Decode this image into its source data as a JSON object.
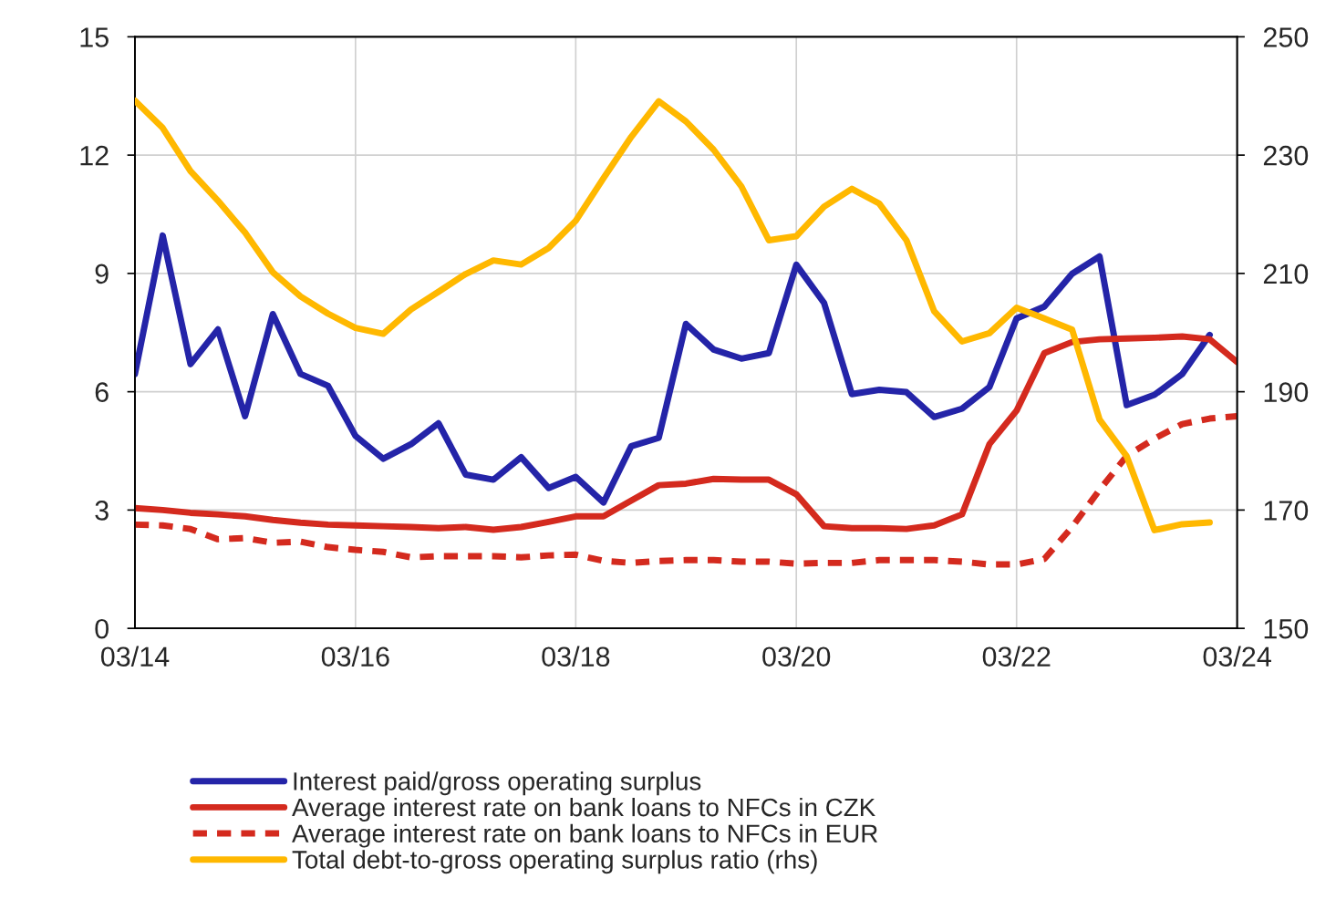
{
  "chart_data": {
    "type": "line",
    "x": [
      "2014-03",
      "2014-06",
      "2014-09",
      "2014-12",
      "2015-03",
      "2015-06",
      "2015-09",
      "2015-12",
      "2016-03",
      "2016-06",
      "2016-09",
      "2016-12",
      "2017-03",
      "2017-06",
      "2017-09",
      "2017-12",
      "2018-03",
      "2018-06",
      "2018-09",
      "2018-12",
      "2019-03",
      "2019-06",
      "2019-09",
      "2019-12",
      "2020-03",
      "2020-06",
      "2020-09",
      "2020-12",
      "2021-03",
      "2021-06",
      "2021-09",
      "2021-12",
      "2022-03",
      "2022-06",
      "2022-09",
      "2022-12",
      "2023-03",
      "2023-06",
      "2023-09",
      "2023-12",
      "2024-03"
    ],
    "series": [
      {
        "name": "Interest paid/gross operating surplus",
        "color": "#2424a8",
        "line_style": "solid",
        "values": [
          6.45,
          9.96,
          6.7,
          7.58,
          5.38,
          7.97,
          6.45,
          6.15,
          4.88,
          4.3,
          4.67,
          5.2,
          3.9,
          3.77,
          4.34,
          3.56,
          3.84,
          3.19,
          4.62,
          4.83,
          7.72,
          7.07,
          6.84,
          6.98,
          9.22,
          8.25,
          5.94,
          6.05,
          5.99,
          5.36,
          5.57,
          6.12,
          7.86,
          8.16,
          8.99,
          9.43,
          5.66,
          5.92,
          6.45,
          7.44,
          null
        ]
      },
      {
        "name": "Average interest rate on bank loans to NFCs in CZK",
        "color": "#d42a1e",
        "line_style": "solid",
        "values": [
          3.05,
          3.0,
          2.93,
          2.89,
          2.84,
          2.75,
          2.68,
          2.63,
          2.61,
          2.59,
          2.57,
          2.54,
          2.57,
          2.5,
          2.57,
          2.7,
          2.84,
          2.84,
          3.24,
          3.63,
          3.67,
          3.79,
          3.77,
          3.77,
          3.4,
          2.59,
          2.54,
          2.54,
          2.52,
          2.61,
          2.89,
          4.67,
          5.52,
          6.98,
          7.26,
          7.33,
          7.35,
          7.37,
          7.4,
          7.33,
          6.75
        ]
      },
      {
        "name": "Average interest rate on bank loans to NFCs in EUR",
        "color": "#d42a1e",
        "line_style": "dashed",
        "values": [
          2.63,
          2.61,
          2.52,
          2.26,
          2.29,
          2.17,
          2.2,
          2.06,
          1.99,
          1.94,
          1.8,
          1.83,
          1.83,
          1.83,
          1.8,
          1.85,
          1.87,
          1.71,
          1.66,
          1.71,
          1.73,
          1.73,
          1.69,
          1.69,
          1.64,
          1.66,
          1.66,
          1.73,
          1.73,
          1.73,
          1.69,
          1.62,
          1.62,
          1.76,
          2.57,
          3.51,
          4.37,
          4.81,
          5.18,
          5.32,
          5.38
        ]
      },
      {
        "name": "Total debt-to-gross operating surplus ratio (rhs)",
        "color": "#ffb800",
        "line_style": "solid",
        "axis": "y2",
        "values": [
          239.2,
          234.6,
          227.3,
          222.3,
          216.9,
          210.2,
          206.1,
          203.2,
          200.8,
          199.8,
          203.9,
          206.9,
          209.9,
          212.2,
          211.5,
          214.3,
          218.9,
          226.1,
          233.1,
          239.1,
          235.7,
          230.9,
          224.7,
          215.6,
          216.3,
          221.3,
          224.3,
          221.8,
          215.6,
          203.6,
          198.5,
          199.9,
          204.2,
          202.4,
          200.5,
          185.3,
          179.1,
          166.6,
          167.6,
          167.9,
          null
        ]
      }
    ],
    "xlim": [
      "2014-03",
      "2024-03"
    ],
    "xticks": [
      {
        "value": "2014-03",
        "label": "03/14"
      },
      {
        "value": "2016-03",
        "label": "03/16"
      },
      {
        "value": "2018-03",
        "label": "03/18"
      },
      {
        "value": "2020-03",
        "label": "03/20"
      },
      {
        "value": "2022-03",
        "label": "03/22"
      },
      {
        "value": "2024-03",
        "label": "03/24"
      }
    ],
    "ylim": [
      0,
      15
    ],
    "yticks": [
      0,
      3,
      6,
      9,
      12,
      15
    ],
    "y2lim": [
      150,
      250
    ],
    "y2ticks": [
      150,
      170,
      190,
      210,
      230,
      250
    ],
    "grid": true,
    "legend": "bottom"
  }
}
